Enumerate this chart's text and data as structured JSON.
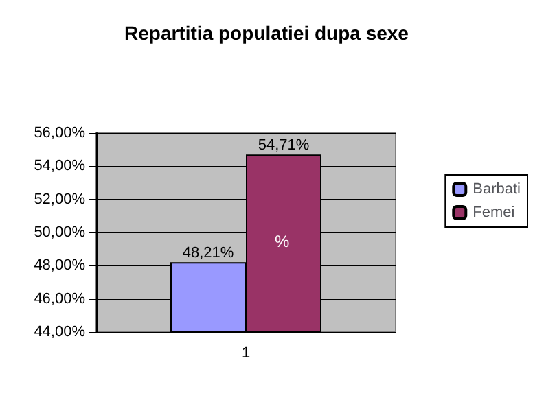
{
  "chart_data": {
    "type": "bar",
    "title": "Repartitia populatiei dupa sexe",
    "categories": [
      "1"
    ],
    "series": [
      {
        "name": "Barbati",
        "color": "#9999ff",
        "values": [
          48.21
        ],
        "value_labels": [
          "48,21%"
        ]
      },
      {
        "name": "Femei",
        "color": "#993366",
        "values": [
          54.71
        ],
        "value_labels": [
          "54,71%"
        ]
      }
    ],
    "ylim": [
      44,
      56
    ],
    "yticks": [
      {
        "value": 44,
        "label": "44,00%"
      },
      {
        "value": 46,
        "label": "46,00%"
      },
      {
        "value": 48,
        "label": "48,00%"
      },
      {
        "value": 50,
        "label": "50,00%"
      },
      {
        "value": 52,
        "label": "52,00%"
      },
      {
        "value": 54,
        "label": "54,00%"
      },
      {
        "value": 56,
        "label": "56,00%"
      }
    ],
    "grid": true,
    "legend": "right",
    "annotations": [
      "%"
    ]
  }
}
